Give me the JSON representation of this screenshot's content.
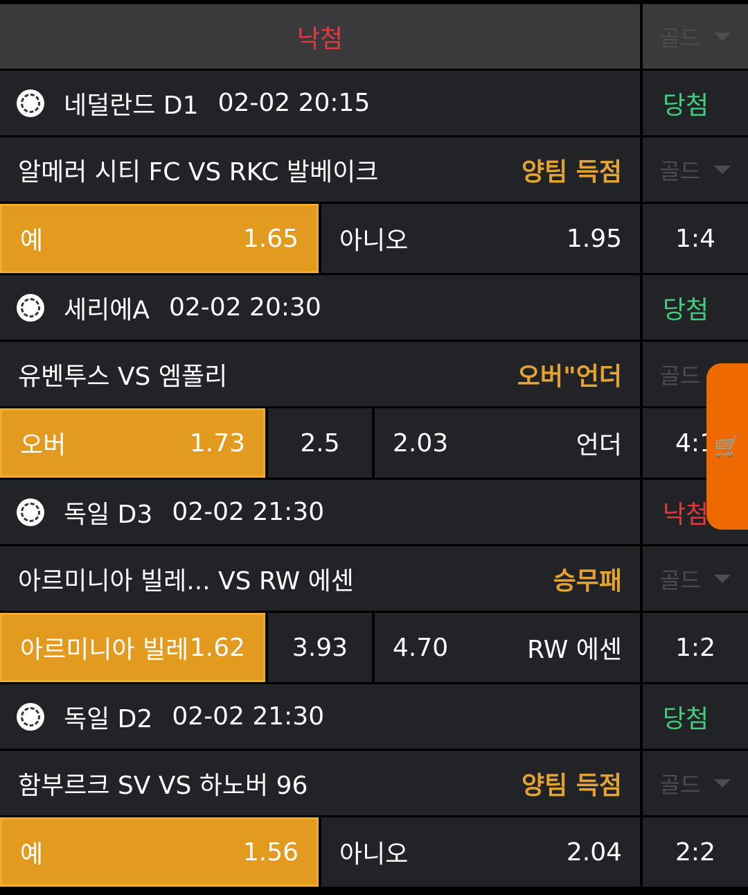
{
  "header": {
    "status": "낙첨",
    "select": "골드"
  },
  "games": [
    {
      "league": "네덜란드 D1",
      "time": "02-02 20:15",
      "result": "당첨",
      "match": "알메러 시티 FC VS RKC 발베이크",
      "market": "양팀 득점",
      "select": "골드",
      "score": "1:4",
      "odds": [
        {
          "label": "예",
          "value": "1.65",
          "selected": true
        },
        {
          "label": "아니오",
          "value": "1.95",
          "selected": false
        }
      ]
    },
    {
      "league": "세리에A",
      "time": "02-02 20:30",
      "result": "당첨",
      "match": "유벤투스 VS 엠폴리",
      "market": "오버\"언더",
      "select": "골드",
      "score": "4:1",
      "odds": [
        {
          "label": "오버",
          "value": "1.73",
          "selected": true
        },
        {
          "value": "2.5"
        },
        {
          "value": "2.03",
          "label": "언더"
        }
      ]
    },
    {
      "league": "독일 D3",
      "time": "02-02 21:30",
      "result": "낙첨",
      "match": "아르미니아 빌레...  VS RW 에센",
      "market": "승무패",
      "select": "골드",
      "score": "1:2",
      "odds": [
        {
          "label": "아르미니아 빌레",
          "value": "1.62",
          "selected": true
        },
        {
          "value": "3.93"
        },
        {
          "value": "4.70",
          "label": "RW 에센"
        }
      ]
    },
    {
      "league": "독일 D2",
      "time": "02-02 21:30",
      "result": "당첨",
      "match": "함부르크 SV VS 하노버 96",
      "market": "양팀 득점",
      "select": "골드",
      "score": "2:2",
      "odds": [
        {
          "label": "예",
          "value": "1.56",
          "selected": true
        },
        {
          "label": "아니오",
          "value": "2.04",
          "selected": false
        }
      ]
    }
  ],
  "colors": {
    "accent": "#e29a1f",
    "win": "#3ecf7c",
    "lose": "#e0393e",
    "market": "#e3a332",
    "cart": "#ee6a00"
  },
  "icons": {
    "sport": "soccer-ball-icon",
    "cart": "shopping-cart-icon",
    "dropdown": "triangle-down-icon"
  }
}
